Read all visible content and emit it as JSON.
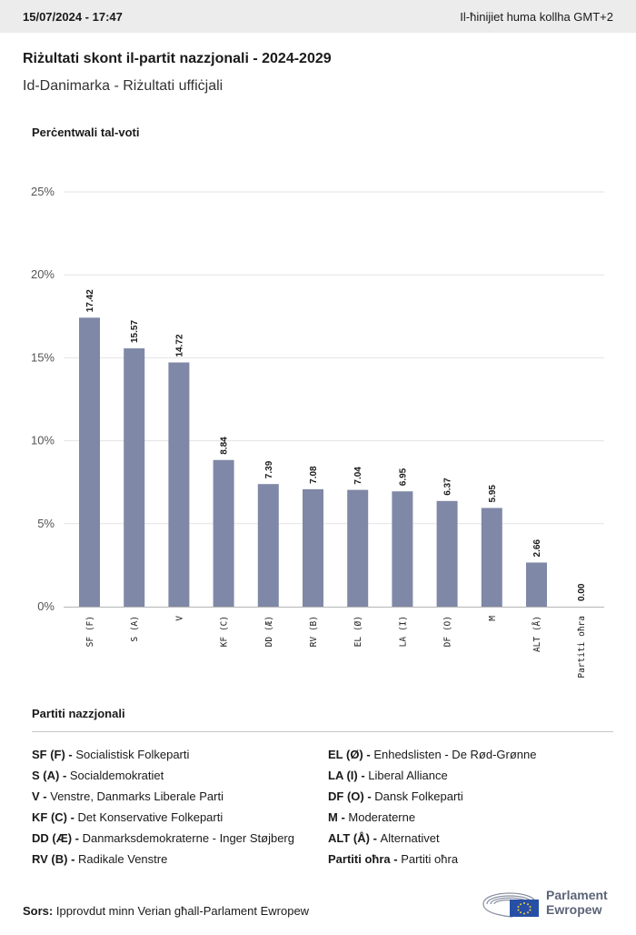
{
  "header": {
    "datetime": "15/07/2024 - 17:47",
    "timezone_note": "Il-ħinijiet huma kollha GMT+2"
  },
  "title": "Riżultati skont il-partit nazzjonali - 2024-2029",
  "subtitle": "Id-Danimarka - Riżultati uffiċjali",
  "colors": {
    "bar": "#7f88a6",
    "grid": "#e3e3e3",
    "axis": "#b5b5b5"
  },
  "chart_data": {
    "type": "bar",
    "ylabel": "Perċentwali tal-voti",
    "ylim": [
      0,
      25
    ],
    "yticks": [
      0,
      5,
      10,
      15,
      20,
      25
    ],
    "ytick_labels": [
      "0%",
      "5%",
      "10%",
      "15%",
      "20%",
      "25%"
    ],
    "categories": [
      "SF (F)",
      "S (A)",
      "V",
      "KF (C)",
      "DD (Æ)",
      "RV (B)",
      "EL (Ø)",
      "LA (I)",
      "DF (O)",
      "M",
      "ALT (Å)",
      "Partiti oħra"
    ],
    "values": [
      17.42,
      15.57,
      14.72,
      8.84,
      7.39,
      7.08,
      7.04,
      6.95,
      6.37,
      5.95,
      2.66,
      0.0
    ],
    "value_labels": [
      "17.42",
      "15.57",
      "14.72",
      "8.84",
      "7.39",
      "7.08",
      "7.04",
      "6.95",
      "6.37",
      "5.95",
      "2.66",
      "0.00"
    ],
    "grid": true,
    "legend": "none"
  },
  "legend": {
    "title": "Partiti nazzjonali",
    "left": [
      {
        "abbr": "SF (F) -",
        "name": "Socialistisk Folkeparti"
      },
      {
        "abbr": "S (A) -",
        "name": "Socialdemokratiet"
      },
      {
        "abbr": "V -",
        "name": "Venstre, Danmarks Liberale Parti"
      },
      {
        "abbr": "KF (C) -",
        "name": "Det Konservative Folkeparti"
      },
      {
        "abbr": "DD (Æ) -",
        "name": "Danmarksdemokraterne - Inger Støjberg"
      },
      {
        "abbr": "RV (B) -",
        "name": "Radikale Venstre"
      }
    ],
    "right": [
      {
        "abbr": "EL (Ø) -",
        "name": "Enhedslisten - De Rød-Grønne"
      },
      {
        "abbr": "LA (I) -",
        "name": "Liberal Alliance"
      },
      {
        "abbr": "DF (O) -",
        "name": "Dansk Folkeparti"
      },
      {
        "abbr": "M -",
        "name": "Moderaterne"
      },
      {
        "abbr": "ALT (Å) -",
        "name": "Alternativet"
      },
      {
        "abbr": "Partiti oħra -",
        "name": "Partiti oħra"
      }
    ]
  },
  "source": {
    "label": "Sors:",
    "text": "Ipprovdut minn Verian għall-Parlament Ewropew"
  },
  "logo": {
    "line1": "Parlament",
    "line2": "Ewropew",
    "icon": "european-parliament-logo-icon"
  }
}
